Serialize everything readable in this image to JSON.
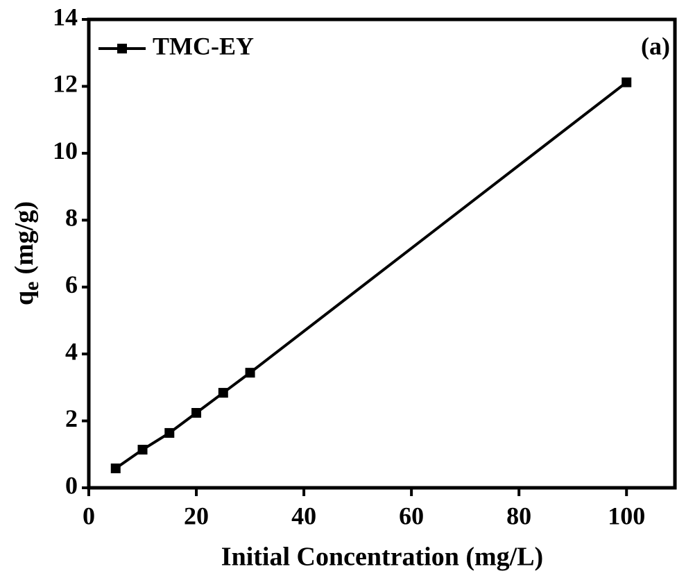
{
  "chart_data": {
    "type": "line",
    "x_label": "Initial Concentration (mg/L)",
    "y_label": {
      "main": "q",
      "sub": "e",
      "rest": "(mg/g)"
    },
    "annotation": "(a)",
    "series": [
      {
        "name": "TMC-EY",
        "color": "#000000",
        "x": [
          5,
          10,
          15,
          20,
          25,
          30,
          100
        ],
        "values": [
          0.58,
          1.14,
          1.64,
          2.24,
          2.84,
          3.44,
          12.12
        ]
      }
    ],
    "xlim": [
      0,
      109
    ],
    "xticks": [
      0,
      20,
      40,
      60,
      80,
      100
    ],
    "ylim": [
      0,
      14
    ],
    "yticks": [
      0,
      2,
      4,
      6,
      8,
      10,
      12,
      14
    ],
    "legend": "top-left",
    "grid": false
  }
}
